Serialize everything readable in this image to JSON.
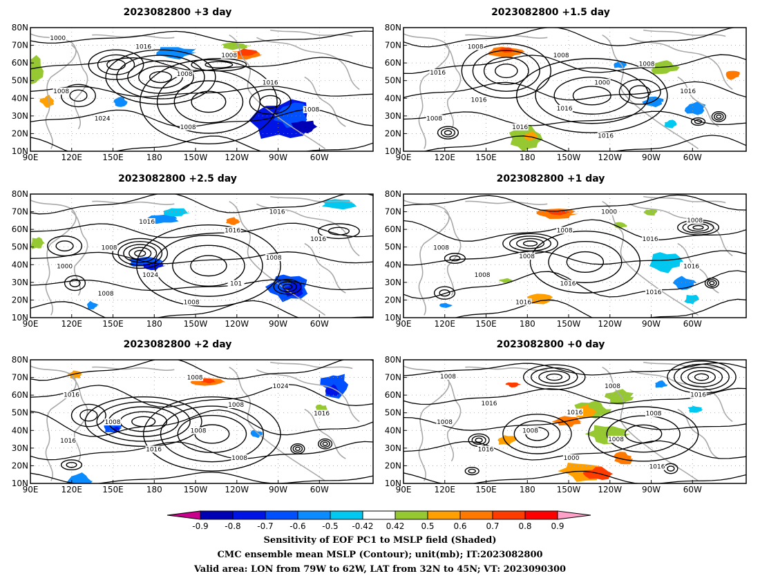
{
  "panels": [
    {
      "title": "2023082800 +3 day",
      "contour_labels": [
        "1000",
        "1008",
        "1008",
        "1016",
        "1016",
        "1024",
        "1008",
        "1008",
        "1008"
      ]
    },
    {
      "title": "2023082800 +1.5 day",
      "contour_labels": [
        "1008",
        "1000",
        "1008",
        "1008",
        "1016",
        "1016",
        "1008",
        "1016",
        "1016",
        "1016",
        "1016"
      ]
    },
    {
      "title": "2023082800 +2.5 day",
      "contour_labels": [
        "1016",
        "1008",
        "1008",
        "1016",
        "1000",
        "1008",
        "1016",
        "1024",
        "1016",
        "1008",
        "101"
      ]
    },
    {
      "title": "2023082800 +1 day",
      "contour_labels": [
        "1008",
        "1016",
        "1016",
        "1016",
        "1008",
        "1000",
        "1008",
        "1016",
        "1008",
        "1008",
        "1016"
      ]
    },
    {
      "title": "2023082800 +2 day",
      "contour_labels": [
        "1008",
        "1016",
        "1008",
        "1016",
        "1016",
        "1024",
        "1008",
        "1008",
        "1016",
        "1008"
      ]
    },
    {
      "title": "2023082800 +0 day",
      "contour_labels": [
        "1008",
        "1016",
        "1008",
        "1008",
        "1000",
        "1016",
        "1008",
        "1016",
        "1016",
        "1008",
        "1008",
        "1016"
      ]
    }
  ],
  "axes": {
    "x_ticks": [
      "90E",
      "120E",
      "150E",
      "180",
      "150W",
      "120W",
      "90W",
      "60W"
    ],
    "y_ticks": [
      "10N",
      "20N",
      "30N",
      "40N",
      "50N",
      "60N",
      "70N",
      "80N"
    ],
    "lon_range_deg": [
      90,
      340
    ],
    "lat_range_deg": [
      10,
      80
    ]
  },
  "colorbar": {
    "ticks": [
      "-0.9",
      "-0.8",
      "-0.7",
      "-0.6",
      "-0.5",
      "-0.42",
      "0.42",
      "0.5",
      "0.6",
      "0.7",
      "0.8",
      "0.9"
    ],
    "colors": [
      "#c8008c",
      "#0000b4",
      "#0014e6",
      "#0050ff",
      "#0a8cff",
      "#00c8f0",
      "#ffffff",
      "#96c832",
      "#ffa000",
      "#ff7800",
      "#ff3c00",
      "#ff0000",
      "#ffa0c8"
    ]
  },
  "captions": [
    "Sensitivity of EOF PC1 to MSLP field (Shaded)",
    "CMC ensemble mean MSLP (Contour); unit(mb); IT:2023082800",
    "Valid area: LON from 79W to 62W, LAT from 32N to 45N; VT: 2023090300"
  ]
}
